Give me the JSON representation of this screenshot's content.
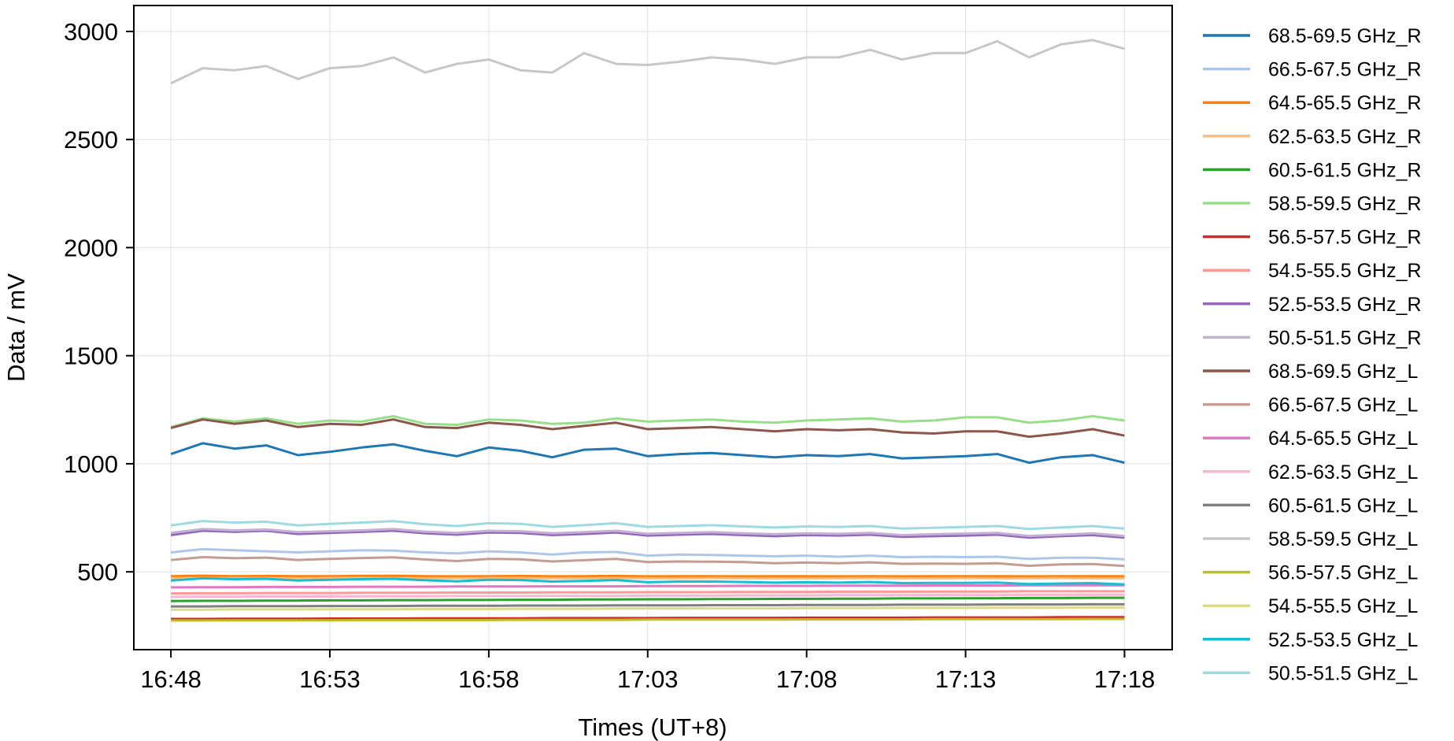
{
  "chart_data": {
    "type": "line",
    "xlabel": "Times (UT+8)",
    "ylabel": "Data / mV",
    "xlim": [
      "16:46:50",
      "17:19:30"
    ],
    "ylim": [
      140,
      3120
    ],
    "xticks": [
      "16:48",
      "16:53",
      "16:58",
      "17:03",
      "17:08",
      "17:13",
      "17:18"
    ],
    "yticks": [
      500,
      1000,
      1500,
      2000,
      2500,
      3000
    ],
    "grid": true,
    "legend_position": "outside-right",
    "x": [
      "16:48",
      "16:49",
      "16:50",
      "16:51",
      "16:52",
      "16:53",
      "16:54",
      "16:55",
      "16:56",
      "16:57",
      "16:58",
      "16:59",
      "17:00",
      "17:01",
      "17:02",
      "17:03",
      "17:04",
      "17:05",
      "17:06",
      "17:07",
      "17:08",
      "17:09",
      "17:10",
      "17:11",
      "17:12",
      "17:13",
      "17:14",
      "17:15",
      "17:16",
      "17:17",
      "17:18"
    ],
    "series": [
      {
        "name": "68.5-69.5 GHz_R",
        "color": "#1f77b4",
        "values": [
          1045,
          1095,
          1070,
          1085,
          1040,
          1055,
          1075,
          1090,
          1060,
          1035,
          1075,
          1060,
          1030,
          1065,
          1070,
          1035,
          1045,
          1050,
          1040,
          1030,
          1040,
          1035,
          1045,
          1025,
          1030,
          1035,
          1045,
          1005,
          1030,
          1040,
          1005
        ]
      },
      {
        "name": "66.5-67.5 GHz_R",
        "color": "#aec7e8",
        "values": [
          590,
          605,
          600,
          595,
          590,
          595,
          600,
          598,
          590,
          585,
          595,
          590,
          580,
          590,
          592,
          575,
          580,
          578,
          575,
          572,
          575,
          570,
          575,
          568,
          570,
          568,
          570,
          560,
          565,
          565,
          558
        ]
      },
      {
        "name": "64.5-65.5 GHz_R",
        "color": "#ff7f0e",
        "values": [
          480,
          482,
          480,
          481,
          480,
          480,
          481,
          482,
          480,
          479,
          480,
          481,
          479,
          480,
          481,
          479,
          480,
          480,
          479,
          480,
          480,
          479,
          480,
          479,
          480,
          480,
          480,
          479,
          480,
          480,
          480
        ]
      },
      {
        "name": "62.5-63.5 GHz_R",
        "color": "#ffbb78",
        "values": [
          470,
          472,
          471,
          471,
          470,
          471,
          472,
          471,
          470,
          470,
          471,
          471,
          470,
          470,
          471,
          470,
          470,
          471,
          470,
          470,
          470,
          470,
          471,
          470,
          470,
          471,
          470,
          470,
          471,
          470,
          470
        ]
      },
      {
        "name": "60.5-61.5 GHz_R",
        "color": "#2ca02c",
        "values": [
          365,
          366,
          366,
          367,
          367,
          368,
          368,
          369,
          369,
          370,
          370,
          371,
          371,
          372,
          372,
          373,
          373,
          374,
          374,
          375,
          375,
          376,
          376,
          377,
          377,
          378,
          378,
          379,
          379,
          380,
          380
        ]
      },
      {
        "name": "58.5-59.5 GHz_R",
        "color": "#98df8a",
        "values": [
          1170,
          1210,
          1195,
          1210,
          1185,
          1200,
          1195,
          1220,
          1185,
          1180,
          1205,
          1200,
          1185,
          1190,
          1210,
          1195,
          1200,
          1205,
          1195,
          1190,
          1200,
          1205,
          1210,
          1195,
          1200,
          1215,
          1215,
          1190,
          1200,
          1220,
          1200
        ]
      },
      {
        "name": "56.5-57.5 GHz_R",
        "color": "#d62728",
        "values": [
          282,
          282,
          283,
          283,
          283,
          284,
          284,
          284,
          285,
          285,
          285,
          285,
          286,
          286,
          286,
          286,
          287,
          287,
          287,
          287,
          288,
          288,
          288,
          288,
          289,
          289,
          289,
          289,
          290,
          290,
          290
        ]
      },
      {
        "name": "54.5-55.5 GHz_R",
        "color": "#ff9896",
        "values": [
          400,
          401,
          401,
          402,
          402,
          402,
          403,
          403,
          403,
          404,
          404,
          404,
          405,
          405,
          405,
          406,
          406,
          406,
          407,
          407,
          407,
          408,
          408,
          408,
          409,
          409,
          409,
          410,
          410,
          410,
          410
        ]
      },
      {
        "name": "52.5-53.5 GHz_R",
        "color": "#9467bd",
        "values": [
          670,
          690,
          685,
          690,
          675,
          680,
          685,
          690,
          678,
          672,
          682,
          680,
          670,
          675,
          682,
          668,
          672,
          675,
          670,
          665,
          670,
          668,
          672,
          662,
          665,
          668,
          672,
          658,
          665,
          670,
          658
        ]
      },
      {
        "name": "50.5-51.5 GHz_R",
        "color": "#c5b0d5",
        "values": [
          680,
          698,
          692,
          696,
          684,
          688,
          692,
          698,
          686,
          680,
          690,
          688,
          678,
          684,
          690,
          676,
          680,
          684,
          678,
          674,
          678,
          676,
          680,
          670,
          674,
          677,
          680,
          666,
          672,
          678,
          666
        ]
      },
      {
        "name": "68.5-69.5 GHz_L",
        "color": "#8c564b",
        "values": [
          1165,
          1205,
          1185,
          1200,
          1170,
          1185,
          1180,
          1205,
          1170,
          1165,
          1190,
          1180,
          1160,
          1175,
          1190,
          1160,
          1165,
          1170,
          1160,
          1150,
          1160,
          1155,
          1160,
          1145,
          1140,
          1150,
          1150,
          1125,
          1140,
          1160,
          1130
        ]
      },
      {
        "name": "66.5-67.5 GHz_L",
        "color": "#c49c94",
        "values": [
          555,
          568,
          563,
          566,
          555,
          560,
          564,
          567,
          557,
          550,
          560,
          558,
          548,
          554,
          560,
          545,
          548,
          547,
          545,
          540,
          543,
          540,
          544,
          537,
          538,
          537,
          540,
          528,
          534,
          536,
          527
        ]
      },
      {
        "name": "64.5-65.5 GHz_L",
        "color": "#e377c2",
        "values": [
          428,
          429,
          429,
          430,
          430,
          430,
          431,
          431,
          431,
          432,
          432,
          432,
          433,
          433,
          433,
          434,
          434,
          434,
          435,
          435,
          435,
          436,
          436,
          436,
          437,
          437,
          437,
          438,
          438,
          438,
          438
        ]
      },
      {
        "name": "62.5-63.5 GHz_L",
        "color": "#f7b6d2",
        "values": [
          384,
          385,
          385,
          386,
          386,
          386,
          387,
          387,
          387,
          388,
          388,
          388,
          389,
          389,
          389,
          390,
          390,
          390,
          391,
          391,
          391,
          392,
          392,
          392,
          393,
          393,
          393,
          394,
          394,
          394,
          394
        ]
      },
      {
        "name": "60.5-61.5 GHz_L",
        "color": "#7f7f7f",
        "values": [
          340,
          340,
          341,
          341,
          341,
          342,
          342,
          342,
          343,
          343,
          343,
          344,
          344,
          344,
          345,
          345,
          345,
          346,
          346,
          346,
          347,
          347,
          347,
          348,
          348,
          348,
          349,
          349,
          349,
          350,
          350
        ]
      },
      {
        "name": "58.5-59.5 GHz_L",
        "color": "#c7c7c7",
        "values": [
          2760,
          2830,
          2820,
          2840,
          2780,
          2830,
          2840,
          2880,
          2810,
          2850,
          2870,
          2820,
          2810,
          2900,
          2850,
          2845,
          2860,
          2880,
          2870,
          2850,
          2880,
          2880,
          2915,
          2870,
          2900,
          2900,
          2955,
          2880,
          2940,
          2960,
          2920
        ]
      },
      {
        "name": "56.5-57.5 GHz_L",
        "color": "#bcbd22",
        "values": [
          275,
          275,
          276,
          276,
          276,
          276,
          277,
          277,
          277,
          277,
          277,
          278,
          278,
          278,
          278,
          279,
          279,
          279,
          279,
          279,
          280,
          280,
          280,
          280,
          281,
          281,
          281,
          281,
          281,
          282,
          282
        ]
      },
      {
        "name": "54.5-55.5 GHz_L",
        "color": "#dbdb8d",
        "values": [
          325,
          325,
          326,
          326,
          326,
          327,
          327,
          327,
          328,
          328,
          328,
          329,
          329,
          329,
          330,
          330,
          330,
          331,
          331,
          331,
          332,
          332,
          332,
          333,
          333,
          333,
          334,
          334,
          334,
          335,
          335
        ]
      },
      {
        "name": "52.5-53.5 GHz_L",
        "color": "#17becf",
        "values": [
          460,
          470,
          466,
          468,
          460,
          463,
          466,
          468,
          461,
          456,
          463,
          462,
          455,
          458,
          462,
          452,
          455,
          455,
          453,
          450,
          452,
          450,
          453,
          448,
          449,
          449,
          450,
          443,
          446,
          448,
          442
        ]
      },
      {
        "name": "50.5-51.5 GHz_L",
        "color": "#9edae5",
        "values": [
          715,
          735,
          728,
          732,
          715,
          722,
          728,
          735,
          720,
          712,
          725,
          722,
          708,
          716,
          725,
          708,
          712,
          716,
          710,
          705,
          710,
          708,
          712,
          700,
          704,
          708,
          712,
          698,
          705,
          712,
          700
        ]
      }
    ]
  }
}
